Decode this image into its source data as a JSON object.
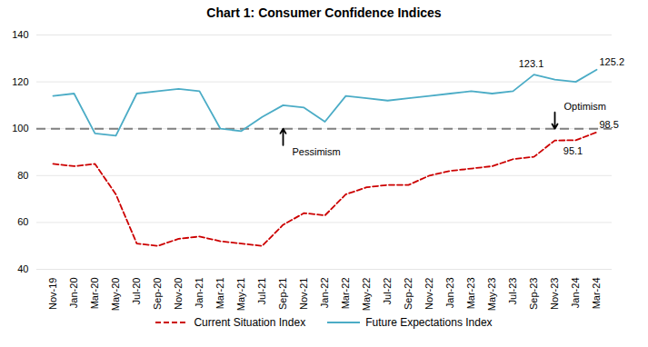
{
  "chart_data": {
    "type": "line",
    "title": "Chart 1: Consumer Confidence Indices",
    "categories": [
      "Nov-19",
      "Jan-20",
      "Mar-20",
      "May-20",
      "Jul-20",
      "Sep-20",
      "Nov-20",
      "Jan-21",
      "Mar-21",
      "May-21",
      "Jul-21",
      "Sep-21",
      "Nov-21",
      "Jan-22",
      "Mar-22",
      "May-22",
      "Jul-22",
      "Sep-22",
      "Nov-22",
      "Jan-23",
      "Mar-23",
      "May-23",
      "Jul-23",
      "Sep-23",
      "Nov-23",
      "Jan-24",
      "Mar-24"
    ],
    "series": [
      {
        "name": "Current Situation Index",
        "color": "#cc0000",
        "line_style": "dashed",
        "values": [
          85,
          84,
          85,
          72,
          51,
          50,
          53,
          54,
          52,
          51,
          50,
          59,
          64,
          63,
          72,
          75,
          76,
          76,
          80,
          82,
          83,
          84,
          87,
          88,
          95,
          95.1,
          98.5
        ],
        "value_labels": [
          null,
          null,
          null,
          null,
          null,
          null,
          null,
          null,
          null,
          null,
          null,
          null,
          null,
          null,
          null,
          null,
          null,
          null,
          null,
          null,
          null,
          null,
          null,
          null,
          null,
          "95.1",
          "98.5"
        ]
      },
      {
        "name": "Future Expectations Index",
        "color": "#4bacc6",
        "line_style": "solid",
        "values": [
          114,
          115,
          98,
          97,
          115,
          116,
          117,
          116,
          100,
          99,
          105,
          110,
          109,
          103,
          114,
          113,
          112,
          113,
          114,
          115,
          116,
          115,
          116,
          123.1,
          121,
          120,
          125.2
        ],
        "value_labels": [
          null,
          null,
          null,
          null,
          null,
          null,
          null,
          null,
          null,
          null,
          null,
          null,
          null,
          null,
          null,
          null,
          null,
          null,
          null,
          null,
          null,
          null,
          null,
          "123.1",
          null,
          null,
          "125.2"
        ]
      }
    ],
    "hlines": [
      {
        "y": 100,
        "color": "#808080",
        "line_style": "dashed"
      }
    ],
    "annotations": [
      {
        "text": "Pessimism",
        "x": "Sep-21",
        "y": 93,
        "arrow_to": 100
      },
      {
        "text": "Optimism",
        "x": "Nov-23",
        "y": 107,
        "arrow_to": 100
      }
    ],
    "ylim": [
      40,
      140
    ],
    "yticks": [
      40,
      60,
      80,
      100,
      120,
      140
    ],
    "grid": true,
    "legend": "bottom"
  }
}
